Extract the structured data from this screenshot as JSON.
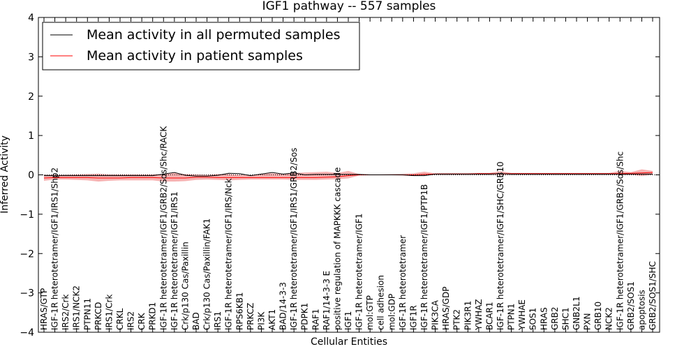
{
  "chart_data": {
    "type": "line",
    "title": "IGF1 pathway -- 557 samples",
    "xlabel": "Cellular Entities",
    "ylabel": "Inferred Activity",
    "ylim": [
      -4,
      4
    ],
    "yticks": [
      "−4",
      "−3",
      "−2",
      "−1",
      "0",
      "1",
      "2",
      "3",
      "4"
    ],
    "ytick_values": [
      -4,
      -3,
      -2,
      -1,
      0,
      1,
      2,
      3,
      4
    ],
    "legend_position": "top-left",
    "categories": [
      "HRAS/GTP",
      "IGF-1R heterotetramer/IGF1/IRS1/Shp2",
      "IRS2/Crk",
      "IRS1/NCK2",
      "PTPN11",
      "PRKCD",
      "IRS1/Crk",
      "CRKL",
      "IRS2",
      "CRK",
      "PRKD1",
      "IGF-1R heterotetramer/IGF1/GRB2/Sos/Shc/RACK",
      "IGF-1R heterotetramer/IGF1/IRS1",
      "Crk/p130 Cas/Paxillin",
      "BAD",
      "Crk/p130 Cas/Paxillin/FAK1",
      "IRS1",
      "IGF-1R heterotetramer/IGF1/IRS/Nck",
      "RPS6KB1",
      "PRKCZ",
      "PI3K",
      "AKT1",
      "BAD/14-3-3",
      "IGF-1R heterotetramer/IGF1/IRS1/GRB2/Sos",
      "PDPK1",
      "RAF1",
      "RAF1/14-3-3 E",
      "positive regulation of MAPKKK cascade",
      "IGF1",
      "IGF-1R heterotetramer/IGF1",
      "mol:GTP",
      "cell adhesion",
      "mol:GDP",
      "IGF-1R heterotetramer",
      "IGF1R",
      "IGF-1R heterotetramer/IGF1/PTP1B",
      "PIK3CA",
      "HRAS/GDP",
      "PTK2",
      "PIK3R1",
      "YWHAZ",
      "BCAR1",
      "IGF-1R heterotetramer/IGF1/SHC/GRB10",
      "PTPN1",
      "YWHAE",
      "SOS1",
      "HRAS",
      "GRB2",
      "SHC1",
      "GNB2L1",
      "PXN",
      "GRB10",
      "NCK2",
      "IGF-1R heterotetramer/IGF1/GRB2/Sos/Shc",
      "GRB2/SOS1",
      "apoptosis",
      "GRB2/SOS1/SHC"
    ],
    "series": [
      {
        "name": "Mean activity in all permuted samples",
        "color": "#000000",
        "values": [
          -0.02,
          -0.02,
          -0.02,
          -0.02,
          -0.02,
          -0.02,
          -0.02,
          -0.02,
          -0.02,
          -0.02,
          -0.02,
          0.02,
          0.06,
          -0.01,
          -0.03,
          -0.03,
          -0.01,
          0.04,
          0.03,
          -0.02,
          0.02,
          0.06,
          0.02,
          0.05,
          0.0,
          0.01,
          0.01,
          0.01,
          0.01,
          0.01,
          0.0,
          0.0,
          0.0,
          0.0,
          -0.02,
          -0.02,
          0.02,
          0.02,
          0.02,
          0.02,
          0.02,
          0.02,
          0.03,
          0.02,
          0.02,
          0.02,
          0.02,
          0.02,
          0.02,
          0.02,
          0.02,
          0.02,
          0.02,
          0.02,
          0.02,
          0.02,
          0.02
        ]
      },
      {
        "name": "Mean activity in patient samples",
        "color": "#ff0000",
        "band_color": "#f08080",
        "values": [
          -0.08,
          -0.07,
          -0.07,
          -0.07,
          -0.07,
          -0.08,
          -0.08,
          -0.08,
          -0.07,
          -0.07,
          -0.07,
          -0.08,
          -0.08,
          -0.08,
          -0.06,
          -0.06,
          -0.07,
          -0.07,
          -0.07,
          -0.07,
          -0.07,
          -0.07,
          -0.07,
          -0.07,
          -0.07,
          -0.07,
          -0.06,
          -0.05,
          -0.02,
          0.0,
          0.0,
          0.0,
          0.0,
          0.0,
          0.0,
          0.01,
          0.02,
          0.02,
          0.02,
          0.02,
          0.03,
          0.03,
          0.03,
          0.03,
          0.03,
          0.03,
          0.03,
          0.03,
          0.03,
          0.03,
          0.03,
          0.03,
          0.03,
          0.03,
          0.04,
          0.05,
          0.06
        ],
        "lower": [
          -0.15,
          -0.12,
          -0.12,
          -0.13,
          -0.14,
          -0.17,
          -0.15,
          -0.14,
          -0.14,
          -0.14,
          -0.14,
          -0.17,
          -0.17,
          -0.16,
          -0.13,
          -0.12,
          -0.13,
          -0.14,
          -0.13,
          -0.12,
          -0.12,
          -0.12,
          -0.12,
          -0.13,
          -0.13,
          -0.13,
          -0.12,
          -0.11,
          -0.09,
          -0.02,
          -0.01,
          -0.01,
          -0.01,
          -0.02,
          -0.02,
          -0.02,
          0.0,
          0.0,
          0.0,
          0.0,
          0.0,
          0.0,
          0.0,
          0.0,
          0.0,
          0.0,
          0.0,
          0.0,
          0.0,
          0.0,
          0.0,
          0.0,
          0.0,
          0.0,
          0.0,
          -0.03,
          0.0
        ],
        "upper": [
          0.0,
          0.0,
          0.0,
          0.01,
          0.02,
          0.03,
          0.01,
          0.01,
          0.01,
          0.01,
          0.01,
          0.02,
          0.05,
          0.02,
          0.01,
          0.0,
          0.02,
          0.02,
          0.0,
          -0.01,
          0.03,
          0.04,
          0.02,
          0.05,
          0.06,
          0.07,
          0.08,
          0.05,
          0.1,
          0.02,
          0.01,
          0.01,
          0.02,
          0.03,
          0.04,
          0.08,
          0.04,
          0.05,
          0.05,
          0.05,
          0.05,
          0.05,
          0.09,
          0.05,
          0.05,
          0.05,
          0.05,
          0.05,
          0.05,
          0.05,
          0.05,
          0.05,
          0.05,
          0.1,
          0.07,
          0.14,
          0.1
        ]
      }
    ],
    "reference_line": {
      "y": 0,
      "style": "dotted"
    }
  }
}
